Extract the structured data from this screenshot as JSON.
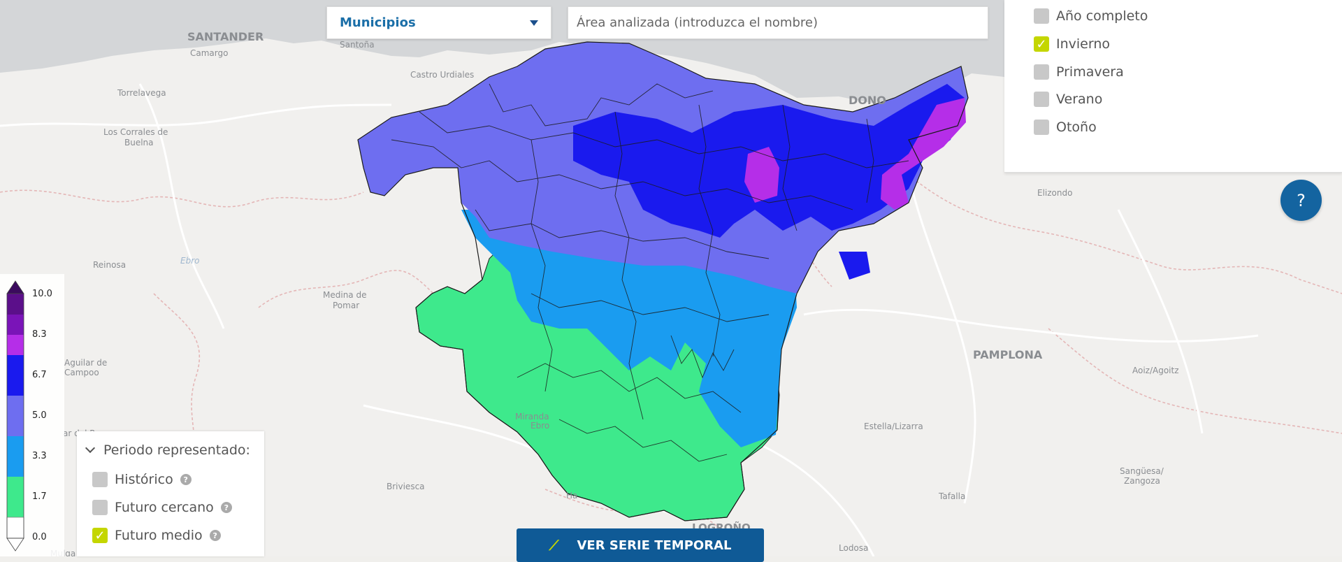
{
  "toolbar": {
    "unit_select": "Municipios",
    "area_placeholder": "Área analizada (introduzca el nombre)"
  },
  "seasons": [
    {
      "label": "Año completo",
      "checked": false
    },
    {
      "label": "Invierno",
      "checked": true
    },
    {
      "label": "Primavera",
      "checked": false
    },
    {
      "label": "Verano",
      "checked": false
    },
    {
      "label": "Otoño",
      "checked": false
    }
  ],
  "help_label": "?",
  "legend": {
    "ticks": [
      "10.0",
      "8.3",
      "6.7",
      "5.0",
      "3.3",
      "1.7",
      "0.0"
    ],
    "colors": [
      "#5b0f8a",
      "#7a14b8",
      "#b52ee8",
      "#1a1aee",
      "#6e6ef0",
      "#1a9cf0",
      "#3ee98c",
      "#ffffff"
    ]
  },
  "period": {
    "title": "Periodo representado:",
    "options": [
      {
        "label": "Histórico",
        "checked": false
      },
      {
        "label": "Futuro cercano",
        "checked": false
      },
      {
        "label": "Futuro medio",
        "checked": true
      }
    ]
  },
  "timeseries_button": "VER SERIE TEMPORAL",
  "map_labels": {
    "santander": "SANTANDER",
    "camargo": "Camargo",
    "santona": "Santoña",
    "castro": "Castro Urdiales",
    "torrelavega": "Torrelavega",
    "corrales_1": "Los Corrales de",
    "corrales_2": "Buelna",
    "reinosa": "Reinosa",
    "ebro": "Ebro",
    "medina_1": "Medina de",
    "medina_2": "Pomar",
    "aguilar_1": "Aguilar de",
    "aguilar_2": "Campoo",
    "miranda_1": "Miranda",
    "miranda_2": "Ebro",
    "briviesca": "Briviesca",
    "haro": "Ha",
    "logrono": "LOGROÑO",
    "lodosa": "Lodosa",
    "tafalla": "Tafalla",
    "estella": "Estella/Lizarra",
    "pamplona": "PAMPLONA",
    "aoiz": "Aoiz/Agoitz",
    "elizondo": "Elizondo",
    "donostia": "DONO",
    "sanguesa_1": "Sangüesa/",
    "sanguesa_2": "Zangoza",
    "mulga": "Mulga",
    "aguilar_rey": "ar del Rey"
  }
}
